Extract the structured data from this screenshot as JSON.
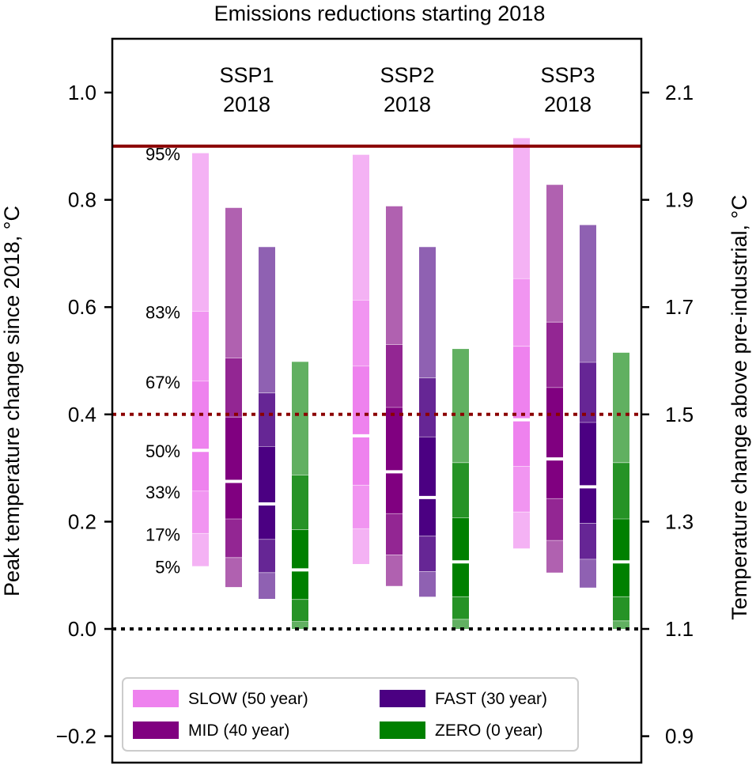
{
  "chart_data": {
    "type": "bar",
    "title": "Emissions reductions starting 2018",
    "ylabel": "Peak temperature change since 2018, °C",
    "ylabel_right": "Temperature change above pre-industrial, °C",
    "ylim": [
      -0.25,
      1.1
    ],
    "yticks": [
      {
        "value": 1.0,
        "label": "1.0"
      },
      {
        "value": 0.8,
        "label": "0.8"
      },
      {
        "value": 0.6,
        "label": "0.6"
      },
      {
        "value": 0.4,
        "label": "0.4"
      },
      {
        "value": 0.2,
        "label": "0.2"
      },
      {
        "value": 0.0,
        "label": "0.0"
      },
      {
        "value": -0.2,
        "label": "−0.2"
      }
    ],
    "yticks_right": [
      {
        "value": 1.0,
        "label": "2.1"
      },
      {
        "value": 0.8,
        "label": "1.9"
      },
      {
        "value": 0.6,
        "label": "1.7"
      },
      {
        "value": 0.4,
        "label": "1.5"
      },
      {
        "value": 0.2,
        "label": "1.3"
      },
      {
        "value": 0.0,
        "label": "1.1"
      },
      {
        "value": -0.2,
        "label": "0.9"
      }
    ],
    "grid": false,
    "legend_position": "bottom",
    "hlines": [
      {
        "y": 0.9,
        "style": "solid",
        "color": "#8b0000"
      },
      {
        "y": 0.4,
        "style": "dotted",
        "color": "#8b0000"
      },
      {
        "y": 0.0,
        "style": "dotted",
        "color": "#000000"
      }
    ],
    "percentile_labels": [
      "95%",
      "83%",
      "67%",
      "50%",
      "33%",
      "17%",
      "5%"
    ],
    "groups": [
      {
        "label_line1": "SSP1",
        "label_line2": "2018"
      },
      {
        "label_line1": "SSP2",
        "label_line2": "2018"
      },
      {
        "label_line1": "SSP3",
        "label_line2": "2018"
      }
    ],
    "series": [
      {
        "name": "SLOW (50 year)",
        "color": "#ee82ee"
      },
      {
        "name": "MID (40 year)",
        "color": "#800080"
      },
      {
        "name": "FAST (30 year)",
        "color": "#4b0082"
      },
      {
        "name": "ZERO (0 year)",
        "color": "#008000"
      }
    ],
    "percentiles": [
      [
        [
          0.117,
          0.178,
          0.257,
          0.333,
          0.462,
          0.592,
          0.887
        ],
        [
          0.078,
          0.133,
          0.205,
          0.275,
          0.395,
          0.505,
          0.785
        ],
        [
          0.056,
          0.105,
          0.167,
          0.233,
          0.34,
          0.44,
          0.712
        ],
        [
          0.0,
          0.014,
          0.055,
          0.11,
          0.185,
          0.287,
          0.498
        ]
      ],
      [
        [
          0.121,
          0.187,
          0.268,
          0.36,
          0.49,
          0.613,
          0.884
        ],
        [
          0.08,
          0.138,
          0.215,
          0.293,
          0.413,
          0.53,
          0.788
        ],
        [
          0.06,
          0.107,
          0.173,
          0.245,
          0.358,
          0.468,
          0.712
        ],
        [
          0.0,
          0.018,
          0.06,
          0.125,
          0.207,
          0.31,
          0.522
        ]
      ],
      [
        [
          0.15,
          0.218,
          0.303,
          0.39,
          0.527,
          0.653,
          0.915
        ],
        [
          0.105,
          0.165,
          0.243,
          0.317,
          0.45,
          0.572,
          0.828
        ],
        [
          0.077,
          0.13,
          0.197,
          0.265,
          0.385,
          0.497,
          0.753
        ],
        [
          0.0,
          0.015,
          0.06,
          0.125,
          0.205,
          0.31,
          0.515
        ]
      ]
    ]
  }
}
